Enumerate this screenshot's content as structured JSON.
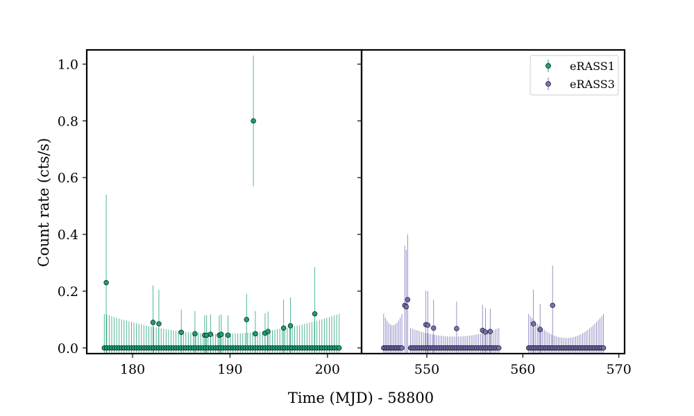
{
  "chart_data": {
    "type": "scatter",
    "title": "",
    "xlabel": "Time (MJD) - 58800",
    "ylabel": "Count rate (cts/s)",
    "ylim": [
      -0.02,
      1.05
    ],
    "yticks": [
      "0.0",
      "0.2",
      "0.4",
      "0.6",
      "0.8",
      "1.0"
    ],
    "legend_position": "top-right",
    "colors": {
      "eRASS1": "#1b9e77",
      "eRASS3": "#7570b3"
    },
    "panels": [
      {
        "name": "left",
        "xlim": [
          175.3,
          203.5
        ],
        "xticks": [
          "180",
          "190",
          "200"
        ]
      },
      {
        "name": "right",
        "xlim": [
          543.2,
          570.6
        ],
        "xticks": [
          "550",
          "560",
          "570"
        ]
      }
    ],
    "series": [
      {
        "name": "eRASS1",
        "panel": "left",
        "zero_points": {
          "x_start": 177.1,
          "x_end": 201.2,
          "count": 96,
          "err_edge": 0.12,
          "err_mid": 0.05
        },
        "points": [
          {
            "x": 177.3,
            "y": 0.23,
            "err": 0.31
          },
          {
            "x": 182.1,
            "y": 0.09,
            "err": 0.13
          },
          {
            "x": 182.7,
            "y": 0.085,
            "err": 0.12
          },
          {
            "x": 185.0,
            "y": 0.055,
            "err": 0.08
          },
          {
            "x": 186.4,
            "y": 0.05,
            "err": 0.08
          },
          {
            "x": 187.4,
            "y": 0.045,
            "err": 0.07
          },
          {
            "x": 187.6,
            "y": 0.045,
            "err": 0.07
          },
          {
            "x": 188.0,
            "y": 0.048,
            "err": 0.07
          },
          {
            "x": 188.9,
            "y": 0.045,
            "err": 0.07
          },
          {
            "x": 189.1,
            "y": 0.048,
            "err": 0.07
          },
          {
            "x": 189.8,
            "y": 0.045,
            "err": 0.07
          },
          {
            "x": 191.7,
            "y": 0.1,
            "err": 0.09
          },
          {
            "x": 192.4,
            "y": 0.8,
            "err": 0.23
          },
          {
            "x": 192.6,
            "y": 0.05,
            "err": 0.08
          },
          {
            "x": 193.6,
            "y": 0.052,
            "err": 0.07
          },
          {
            "x": 193.9,
            "y": 0.058,
            "err": 0.07
          },
          {
            "x": 195.5,
            "y": 0.07,
            "err": 0.1
          },
          {
            "x": 196.2,
            "y": 0.078,
            "err": 0.1
          },
          {
            "x": 198.7,
            "y": 0.12,
            "err": 0.165
          }
        ]
      },
      {
        "name": "eRASS3",
        "panel": "right",
        "zero_segments": [
          {
            "x_start": 545.5,
            "x_end": 547.4,
            "count": 12,
            "err_edge": 0.12,
            "err_mid": 0.08
          },
          {
            "x_start": 548.3,
            "x_end": 557.5,
            "count": 49,
            "err_edge": 0.07,
            "err_mid": 0.04
          },
          {
            "x_start": 560.6,
            "x_end": 568.4,
            "count": 44,
            "err_edge": 0.12,
            "err_mid": 0.035
          }
        ],
        "points": [
          {
            "x": 547.7,
            "y": 0.15,
            "err": 0.21
          },
          {
            "x": 547.85,
            "y": 0.145,
            "err": 0.2
          },
          {
            "x": 548.0,
            "y": 0.17,
            "err": 0.23
          },
          {
            "x": 549.9,
            "y": 0.082,
            "err": 0.12
          },
          {
            "x": 550.1,
            "y": 0.08,
            "err": 0.12
          },
          {
            "x": 550.7,
            "y": 0.07,
            "err": 0.1
          },
          {
            "x": 553.1,
            "y": 0.068,
            "err": 0.095
          },
          {
            "x": 555.8,
            "y": 0.062,
            "err": 0.09
          },
          {
            "x": 556.1,
            "y": 0.056,
            "err": 0.085
          },
          {
            "x": 556.6,
            "y": 0.058,
            "err": 0.08
          },
          {
            "x": 561.1,
            "y": 0.085,
            "err": 0.12
          },
          {
            "x": 561.8,
            "y": 0.065,
            "err": 0.09
          },
          {
            "x": 563.1,
            "y": 0.15,
            "err": 0.14
          }
        ]
      }
    ]
  }
}
